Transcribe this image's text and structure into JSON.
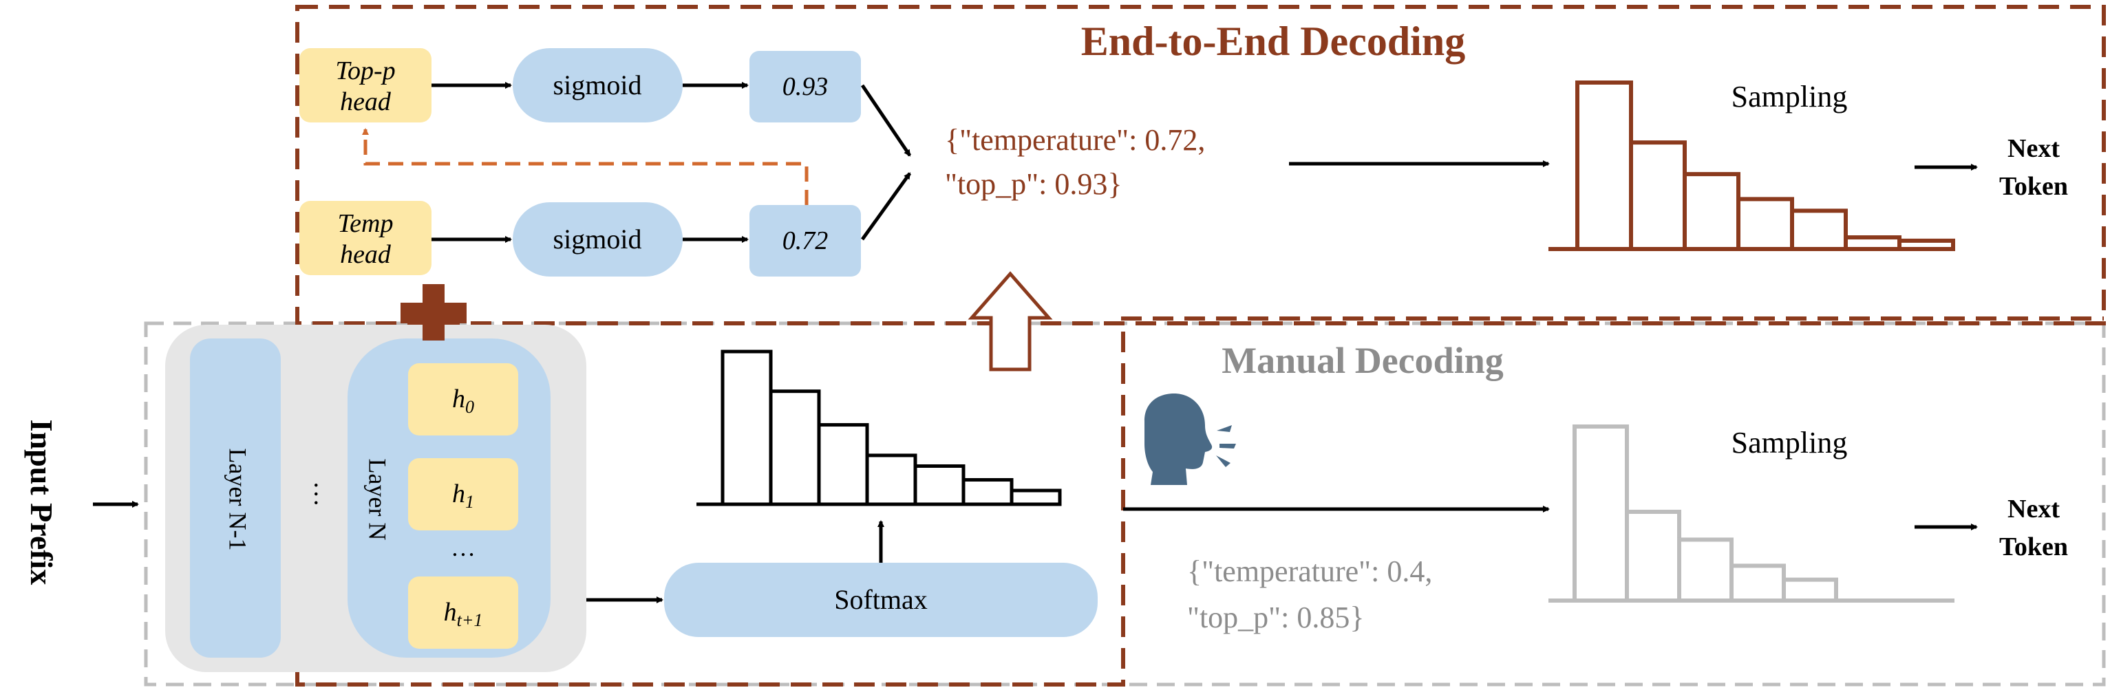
{
  "input": {
    "label": "Input Prefix"
  },
  "model": {
    "layers": [
      "Layer N-1",
      "Layer N"
    ],
    "ellipsis": "…",
    "hidden_states": [
      {
        "base": "h",
        "sub": "0"
      },
      {
        "base": "h",
        "sub": "1"
      },
      {
        "base": "h",
        "sub": "t+1"
      }
    ],
    "hidden_ellipsis": "…",
    "plus_symbol": "+"
  },
  "softmax": {
    "label": "Softmax"
  },
  "end_to_end": {
    "title": "End-to-End Decoding",
    "heads": [
      {
        "line1": "Top-p",
        "line2": "head"
      },
      {
        "line1": "Temp",
        "line2": "head"
      }
    ],
    "activations": [
      "sigmoid",
      "sigmoid"
    ],
    "values": [
      "0.93",
      "0.72"
    ],
    "params_line1": "{\"temperature\": 0.72,",
    "params_line2": "\"top_p\": 0.93}",
    "sampling_label": "Sampling",
    "next_token_line1": "Next",
    "next_token_line2": "Token",
    "distribution": [
      1.0,
      0.64,
      0.45,
      0.3,
      0.23,
      0.07,
      0.05
    ]
  },
  "manual": {
    "title": "Manual Decoding",
    "params_line1": "{\"temperature\": 0.4,",
    "params_line2": "\"top_p\": 0.85}",
    "sampling_label": "Sampling",
    "next_token_line1": "Next",
    "next_token_line2": "Token",
    "distribution": [
      1.0,
      0.51,
      0.35,
      0.2,
      0.12
    ]
  },
  "softmax_distribution": [
    1.0,
    0.74,
    0.52,
    0.32,
    0.25,
    0.16,
    0.09
  ],
  "colors": {
    "brown": "#8b3a1d",
    "orange_dashed": "#d2692e",
    "gray": "#bdbdbd",
    "gray_text": "#8c8c8c",
    "blue": "#bdd7ee",
    "yellow": "#fde8a7",
    "panel_gray": "#e6e6e6",
    "speaker": "#4a6a86"
  }
}
